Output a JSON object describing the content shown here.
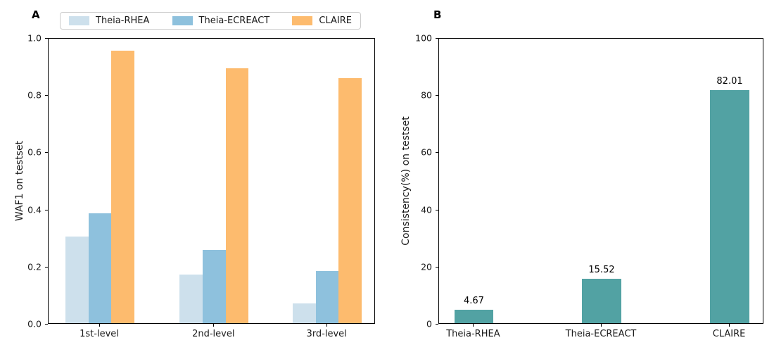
{
  "figure": {
    "background": "#ffffff",
    "panel_labels": [
      "A",
      "B"
    ]
  },
  "chart_data": [
    {
      "type": "bar",
      "panel_label": "A",
      "ylabel": "WAF1 on testset",
      "categories": [
        "1st-level",
        "2nd-level",
        "3rd-level"
      ],
      "series": [
        {
          "name": "Theia-RHEA",
          "color": "#cde0ec",
          "values": [
            0.305,
            0.171,
            0.07
          ]
        },
        {
          "name": "Theia-ECREACT",
          "color": "#8ec1dd",
          "values": [
            0.386,
            0.257,
            0.183
          ]
        },
        {
          "name": "CLAIRE",
          "color": "#fdbb6e",
          "values": [
            0.958,
            0.897,
            0.862
          ]
        }
      ],
      "ylim": [
        0,
        1.0
      ],
      "ytick_labels": [
        "0.0",
        "0.2",
        "0.4",
        "0.6",
        "0.8",
        "1.0"
      ],
      "grid": false,
      "legend": {
        "show": true,
        "position": "top",
        "entries": [
          "Theia-RHEA",
          "Theia-ECREACT",
          "CLAIRE"
        ]
      },
      "layout": {
        "tick_centers_pct": [
          15.7,
          50.6,
          85.2
        ],
        "bar_width_pct": 7.0
      }
    },
    {
      "type": "bar",
      "panel_label": "B",
      "ylabel": "Consistency(%) on testset",
      "categories": [
        "Theia-RHEA",
        "Theia-ECREACT",
        "CLAIRE"
      ],
      "series": [
        {
          "name": "Consistency",
          "color": "#52a2a3",
          "values": [
            4.67,
            15.52,
            82.01
          ],
          "value_labels": [
            "4.67",
            "15.52",
            "82.01"
          ]
        }
      ],
      "ylim": [
        0,
        100
      ],
      "ytick_labels": [
        "0",
        "20",
        "40",
        "60",
        "80",
        "100"
      ],
      "grid": false,
      "legend": {
        "show": false
      },
      "layout": {
        "tick_centers_pct": [
          10.7,
          50.0,
          89.4
        ],
        "bar_width_pct": 12.0
      }
    }
  ]
}
